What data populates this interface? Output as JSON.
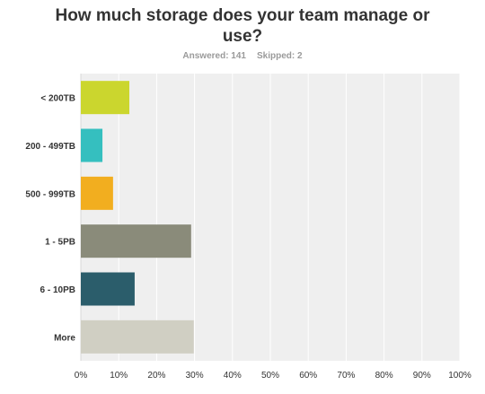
{
  "title": "How much storage does your team manage or use?",
  "stats": {
    "answered_label": "Answered: 141",
    "skipped_label": "Skipped: 2"
  },
  "chart_data": {
    "type": "bar",
    "orientation": "horizontal",
    "title": "How much storage does your team manage or use?",
    "categories": [
      "< 200TB",
      "200 - 499TB",
      "500 - 999TB",
      "1 - 5PB",
      "6 - 10PB",
      "More"
    ],
    "values": [
      12.8,
      5.7,
      8.5,
      29.1,
      14.2,
      29.8
    ],
    "colors": [
      "#cbd62e",
      "#35bfbf",
      "#f2ae1f",
      "#8a8b7a",
      "#2b5d6b",
      "#d0cfc3"
    ],
    "xlim": [
      0,
      100
    ],
    "x_ticks": [
      "0%",
      "10%",
      "20%",
      "30%",
      "40%",
      "50%",
      "60%",
      "70%",
      "80%",
      "90%",
      "100%"
    ],
    "grid": true,
    "background": "#efefef",
    "grid_color": "#ffffff",
    "legend": "none"
  }
}
